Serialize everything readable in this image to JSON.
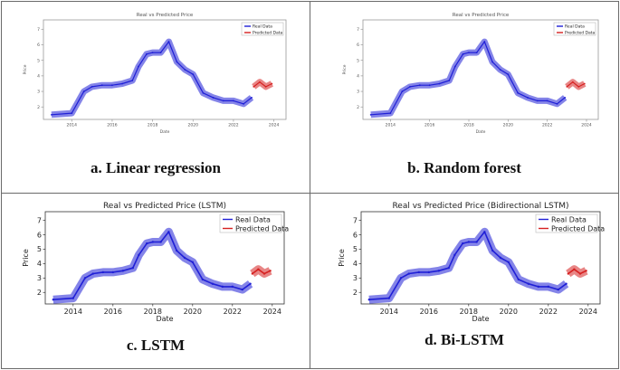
{
  "panels": [
    {
      "caption": "a.   Linear regression",
      "chart_data": {
        "type": "line",
        "title": "Real vs Predicted Price",
        "xlabel": "Date",
        "ylabel": "Price",
        "xlim": [
          2012.6,
          2024.6
        ],
        "ylim": [
          1.2,
          7.6
        ],
        "x_ticks": [
          "2014",
          "2016",
          "2018",
          "2020",
          "2022",
          "2024"
        ],
        "y_ticks": [
          "2",
          "3",
          "4",
          "5",
          "6",
          "7"
        ],
        "legend_position": "top-right",
        "series": [
          {
            "name": "Real Data",
            "color": "#1f1fd6",
            "x": [
              2013.0,
              2014.0,
              2014.6,
              2015.0,
              2015.5,
              2016.0,
              2016.5,
              2017.0,
              2017.3,
              2017.7,
              2018.0,
              2018.4,
              2018.8,
              2019.2,
              2019.6,
              2020.0,
              2020.5,
              2021.0,
              2021.5,
              2022.0,
              2022.5,
              2022.9
            ],
            "y": [
              1.5,
              1.6,
              3.0,
              3.3,
              3.4,
              3.4,
              3.5,
              3.7,
              4.6,
              5.4,
              5.5,
              5.5,
              6.2,
              4.9,
              4.4,
              4.1,
              2.9,
              2.6,
              2.4,
              2.4,
              2.2,
              2.6
            ]
          },
          {
            "name": "Predicted Data",
            "color": "#d62020",
            "x": [
              2023.0,
              2023.3,
              2023.6,
              2023.9
            ],
            "y": [
              3.3,
              3.6,
              3.3,
              3.5
            ]
          }
        ]
      }
    },
    {
      "caption": "b.   Random forest",
      "chart_data": {
        "type": "line",
        "title": "Real vs Predicted Price",
        "xlabel": "Date",
        "ylabel": "Price",
        "xlim": [
          2012.6,
          2024.6
        ],
        "ylim": [
          1.2,
          7.6
        ],
        "x_ticks": [
          "2014",
          "2016",
          "2018",
          "2020",
          "2022",
          "2024"
        ],
        "y_ticks": [
          "2",
          "3",
          "4",
          "5",
          "6",
          "7"
        ],
        "legend_position": "top-right",
        "series": [
          {
            "name": "Real Data",
            "color": "#1f1fd6",
            "x": [
              2013.0,
              2014.0,
              2014.6,
              2015.0,
              2015.5,
              2016.0,
              2016.5,
              2017.0,
              2017.3,
              2017.7,
              2018.0,
              2018.4,
              2018.8,
              2019.2,
              2019.6,
              2020.0,
              2020.5,
              2021.0,
              2021.5,
              2022.0,
              2022.5,
              2022.9
            ],
            "y": [
              1.5,
              1.6,
              3.0,
              3.3,
              3.4,
              3.4,
              3.5,
              3.7,
              4.6,
              5.4,
              5.5,
              5.5,
              6.2,
              4.9,
              4.4,
              4.1,
              2.9,
              2.6,
              2.4,
              2.4,
              2.2,
              2.6
            ]
          },
          {
            "name": "Predicted Data",
            "color": "#d62020",
            "x": [
              2023.0,
              2023.3,
              2023.6,
              2023.9
            ],
            "y": [
              3.3,
              3.6,
              3.3,
              3.5
            ]
          }
        ]
      }
    },
    {
      "caption": "c.   LSTM",
      "chart_data": {
        "type": "line",
        "title": "Real vs Predicted Price (LSTM)",
        "xlabel": "Date",
        "ylabel": "Price",
        "xlim": [
          2012.6,
          2024.6
        ],
        "ylim": [
          1.2,
          7.6
        ],
        "x_ticks": [
          "2014",
          "2016",
          "2018",
          "2020",
          "2022",
          "2024"
        ],
        "y_ticks": [
          "2",
          "3",
          "4",
          "5",
          "6",
          "7"
        ],
        "legend_position": "top-right",
        "series": [
          {
            "name": "Real Data",
            "color": "#1f1fd6",
            "x": [
              2013.0,
              2014.0,
              2014.6,
              2015.0,
              2015.5,
              2016.0,
              2016.5,
              2017.0,
              2017.3,
              2017.7,
              2018.0,
              2018.4,
              2018.8,
              2019.2,
              2019.6,
              2020.0,
              2020.5,
              2021.0,
              2021.5,
              2022.0,
              2022.5,
              2022.9
            ],
            "y": [
              1.5,
              1.6,
              3.0,
              3.3,
              3.4,
              3.4,
              3.5,
              3.7,
              4.6,
              5.4,
              5.5,
              5.5,
              6.2,
              4.9,
              4.4,
              4.1,
              2.9,
              2.6,
              2.4,
              2.4,
              2.2,
              2.6
            ]
          },
          {
            "name": "Predicted Data",
            "color": "#d62020",
            "x": [
              2023.0,
              2023.3,
              2023.6,
              2023.9
            ],
            "y": [
              3.3,
              3.6,
              3.3,
              3.5
            ]
          }
        ]
      }
    },
    {
      "caption": "d.   Bi-LSTM",
      "chart_data": {
        "type": "line",
        "title": "Real vs Predicted Price (Bidirectional LSTM)",
        "xlabel": "Date",
        "ylabel": "Price",
        "xlim": [
          2012.6,
          2024.6
        ],
        "ylim": [
          1.2,
          7.6
        ],
        "x_ticks": [
          "2014",
          "2016",
          "2018",
          "2020",
          "2022",
          "2024"
        ],
        "y_ticks": [
          "2",
          "3",
          "4",
          "5",
          "6",
          "7"
        ],
        "legend_position": "top-right",
        "series": [
          {
            "name": "Real Data",
            "color": "#1f1fd6",
            "x": [
              2013.0,
              2014.0,
              2014.6,
              2015.0,
              2015.5,
              2016.0,
              2016.5,
              2017.0,
              2017.3,
              2017.7,
              2018.0,
              2018.4,
              2018.8,
              2019.2,
              2019.6,
              2020.0,
              2020.5,
              2021.0,
              2021.5,
              2022.0,
              2022.5,
              2022.9
            ],
            "y": [
              1.5,
              1.6,
              3.0,
              3.3,
              3.4,
              3.4,
              3.5,
              3.7,
              4.6,
              5.4,
              5.5,
              5.5,
              6.2,
              4.9,
              4.4,
              4.1,
              2.9,
              2.6,
              2.4,
              2.4,
              2.2,
              2.6
            ]
          },
          {
            "name": "Predicted Data",
            "color": "#d62020",
            "x": [
              2023.0,
              2023.3,
              2023.6,
              2023.9
            ],
            "y": [
              3.3,
              3.6,
              3.3,
              3.5
            ]
          }
        ]
      }
    }
  ]
}
